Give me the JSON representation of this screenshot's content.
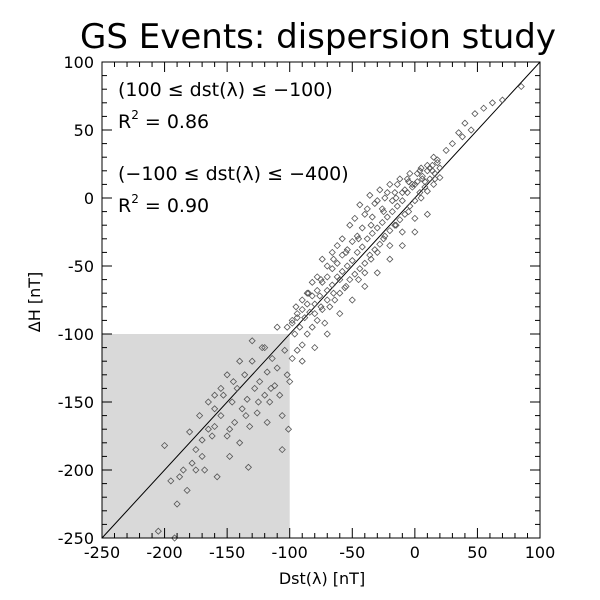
{
  "chart_data": {
    "type": "scatter",
    "title": "GS Events: dispersion study",
    "xlabel": "Dst(λ) [nT]",
    "ylabel": "ΔH [nT]",
    "xlim": [
      -250,
      100
    ],
    "ylim": [
      -250,
      100
    ],
    "xticks": [
      -250,
      -200,
      -150,
      -100,
      -50,
      0,
      50,
      100
    ],
    "yticks": [
      -250,
      -200,
      -150,
      -100,
      -50,
      0,
      50,
      100
    ],
    "grid": false,
    "marker": "diamond-open",
    "colors": {
      "points": "#555555",
      "shade": "#d9d9d9",
      "axis": "#000000"
    },
    "shaded_region": {
      "x": [
        -250,
        -100
      ],
      "y": [
        -250,
        -100
      ]
    },
    "reference_line": {
      "x": [
        -250,
        100
      ],
      "y": [
        -250,
        100
      ]
    },
    "annotations": [
      {
        "id": "range1",
        "text": "(100 ≤ dst(λ) ≤ −100)"
      },
      {
        "id": "r2a_prefix",
        "text": "R"
      },
      {
        "id": "r2a_sup",
        "text": "2"
      },
      {
        "id": "r2a_value",
        "text": " = 0.86"
      },
      {
        "id": "range2",
        "text": "(−100 ≤ dst(λ) ≤ −400)"
      },
      {
        "id": "r2b_prefix",
        "text": "R"
      },
      {
        "id": "r2b_sup",
        "text": "2"
      },
      {
        "id": "r2b_value",
        "text": " = 0.90"
      }
    ],
    "series": [
      {
        "points": [
          [
            -205,
            -245
          ],
          [
            -200,
            -182
          ],
          [
            -195,
            -208
          ],
          [
            -192,
            -250
          ],
          [
            -188,
            -205
          ],
          [
            -185,
            -200
          ],
          [
            -180,
            -172
          ],
          [
            -178,
            -195
          ],
          [
            -175,
            -185
          ],
          [
            -172,
            -160
          ],
          [
            -170,
            -178
          ],
          [
            -168,
            -200
          ],
          [
            -165,
            -150
          ],
          [
            -162,
            -175
          ],
          [
            -160,
            -168
          ],
          [
            -158,
            -205
          ],
          [
            -155,
            -160
          ],
          [
            -153,
            -145
          ],
          [
            -150,
            -175
          ],
          [
            -148,
            -190
          ],
          [
            -146,
            -150
          ],
          [
            -144,
            -165
          ],
          [
            -142,
            -140
          ],
          [
            -140,
            -180
          ],
          [
            -138,
            -155
          ],
          [
            -136,
            -130
          ],
          [
            -134,
            -148
          ],
          [
            -132,
            -168
          ],
          [
            -130,
            -120
          ],
          [
            -128,
            -140
          ],
          [
            -126,
            -158
          ],
          [
            -124,
            -135
          ],
          [
            -122,
            -110
          ],
          [
            -120,
            -145
          ],
          [
            -118,
            -128
          ],
          [
            -116,
            -150
          ],
          [
            -114,
            -118
          ],
          [
            -112,
            -138
          ],
          [
            -110,
            -125
          ],
          [
            -108,
            -145
          ],
          [
            -106,
            -160
          ],
          [
            -104,
            -112
          ],
          [
            -102,
            -130
          ],
          [
            -101,
            -170
          ],
          [
            -98,
            -118
          ],
          [
            -96,
            -100
          ],
          [
            -94,
            -112
          ],
          [
            -92,
            -95
          ],
          [
            -90,
            -108
          ],
          [
            -88,
            -88
          ],
          [
            -86,
            -100
          ],
          [
            -84,
            -84
          ],
          [
            -82,
            -95
          ],
          [
            -80,
            -78
          ],
          [
            -78,
            -90
          ],
          [
            -76,
            -72
          ],
          [
            -74,
            -82
          ],
          [
            -72,
            -92
          ],
          [
            -70,
            -68
          ],
          [
            -68,
            -80
          ],
          [
            -66,
            -64
          ],
          [
            -64,
            -75
          ],
          [
            -62,
            -58
          ],
          [
            -60,
            -70
          ],
          [
            -58,
            -54
          ],
          [
            -56,
            -66
          ],
          [
            -54,
            -50
          ],
          [
            -52,
            -60
          ],
          [
            -50,
            -46
          ],
          [
            -48,
            -56
          ],
          [
            -46,
            -40
          ],
          [
            -44,
            -52
          ],
          [
            -42,
            -36
          ],
          [
            -40,
            -48
          ],
          [
            -38,
            -30
          ],
          [
            -36,
            -42
          ],
          [
            -34,
            -26
          ],
          [
            -32,
            -38
          ],
          [
            -30,
            -22
          ],
          [
            -28,
            -34
          ],
          [
            -26,
            -18
          ],
          [
            -24,
            -28
          ],
          [
            -22,
            -14
          ],
          [
            -20,
            -24
          ],
          [
            -18,
            -10
          ],
          [
            -16,
            -20
          ],
          [
            -14,
            -6
          ],
          [
            -12,
            -16
          ],
          [
            -10,
            -2
          ],
          [
            -8,
            -12
          ],
          [
            -6,
            4
          ],
          [
            -4,
            -6
          ],
          [
            -2,
            8
          ],
          [
            0,
            -2
          ],
          [
            2,
            12
          ],
          [
            4,
            4
          ],
          [
            6,
            16
          ],
          [
            8,
            8
          ],
          [
            10,
            20
          ],
          [
            12,
            14
          ],
          [
            14,
            24
          ],
          [
            16,
            18
          ],
          [
            18,
            28
          ],
          [
            20,
            22
          ],
          [
            25,
            35
          ],
          [
            30,
            40
          ],
          [
            35,
            48
          ],
          [
            40,
            55
          ],
          [
            48,
            62
          ],
          [
            55,
            66
          ],
          [
            -60,
            -85
          ],
          [
            -55,
            -40
          ],
          [
            -50,
            -75
          ],
          [
            -45,
            -30
          ],
          [
            -40,
            -65
          ],
          [
            -35,
            -20
          ],
          [
            -30,
            -55
          ],
          [
            -25,
            -10
          ],
          [
            -20,
            -45
          ],
          [
            -15,
            0
          ],
          [
            -10,
            -35
          ],
          [
            -5,
            12
          ],
          [
            0,
            -25
          ],
          [
            5,
            22
          ],
          [
            10,
            -12
          ],
          [
            15,
            30
          ],
          [
            -70,
            -100
          ],
          [
            -65,
            -45
          ],
          [
            -75,
            -60
          ],
          [
            -80,
            -110
          ],
          [
            -85,
            -70
          ],
          [
            -90,
            -120
          ],
          [
            -95,
            -80
          ],
          [
            -100,
            -135
          ],
          [
            -110,
            -95
          ],
          [
            -115,
            -140
          ],
          [
            -120,
            -110
          ],
          [
            -125,
            -150
          ],
          [
            -130,
            -105
          ],
          [
            -135,
            -160
          ],
          [
            -52,
            -20
          ],
          [
            -48,
            -15
          ],
          [
            -44,
            -5
          ],
          [
            -40,
            -12
          ],
          [
            -36,
            2
          ],
          [
            -32,
            -4
          ],
          [
            -28,
            6
          ],
          [
            -24,
            0
          ],
          [
            -20,
            10
          ],
          [
            -16,
            4
          ],
          [
            -12,
            14
          ],
          [
            -8,
            6
          ],
          [
            -4,
            18
          ],
          [
            0,
            10
          ],
          [
            4,
            20
          ],
          [
            8,
            12
          ],
          [
            12,
            22
          ],
          [
            16,
            14
          ],
          [
            -58,
            -30
          ],
          [
            -62,
            -35
          ],
          [
            -66,
            -40
          ],
          [
            -70,
            -50
          ],
          [
            -74,
            -45
          ],
          [
            -78,
            -58
          ],
          [
            -82,
            -62
          ],
          [
            -86,
            -70
          ],
          [
            -90,
            -75
          ],
          [
            -94,
            -85
          ],
          [
            -98,
            -90
          ],
          [
            -102,
            -95
          ],
          [
            -140,
            -120
          ],
          [
            -145,
            -135
          ],
          [
            -150,
            -130
          ],
          [
            -155,
            -140
          ],
          [
            -160,
            -155
          ],
          [
            -165,
            -170
          ],
          [
            -170,
            -190
          ],
          [
            -175,
            -200
          ],
          [
            -182,
            -215
          ],
          [
            -190,
            -225
          ],
          [
            -45,
            -60
          ],
          [
            -40,
            -55
          ],
          [
            -35,
            -45
          ],
          [
            -30,
            -40
          ],
          [
            -25,
            -30
          ],
          [
            -20,
            -35
          ],
          [
            -15,
            -20
          ],
          [
            -10,
            -25
          ],
          [
            -5,
            -10
          ],
          [
            0,
            -15
          ],
          [
            5,
            0
          ],
          [
            10,
            5
          ],
          [
            15,
            10
          ],
          [
            20,
            15
          ],
          [
            -55,
            -65
          ],
          [
            -60,
            -60
          ],
          [
            -65,
            -70
          ],
          [
            -70,
            -75
          ],
          [
            -75,
            -80
          ],
          [
            -80,
            -85
          ],
          [
            -38,
            -8
          ],
          [
            -34,
            -14
          ],
          [
            -30,
            -2
          ],
          [
            -26,
            -8
          ],
          [
            -22,
            4
          ],
          [
            -18,
            -2
          ],
          [
            -14,
            10
          ],
          [
            -10,
            4
          ],
          [
            -6,
            14
          ],
          [
            -2,
            10
          ],
          [
            2,
            18
          ],
          [
            6,
            14
          ],
          [
            10,
            24
          ],
          [
            14,
            20
          ],
          [
            18,
            26
          ],
          [
            -42,
            -22
          ],
          [
            -46,
            -28
          ],
          [
            -50,
            -32
          ],
          [
            -54,
            -38
          ],
          [
            -58,
            -42
          ],
          [
            -62,
            -48
          ],
          [
            -66,
            -52
          ],
          [
            -70,
            -58
          ],
          [
            -74,
            -62
          ],
          [
            -78,
            -68
          ],
          [
            -82,
            -72
          ],
          [
            -86,
            -78
          ],
          [
            -90,
            -82
          ],
          [
            -94,
            -88
          ],
          [
            -98,
            -92
          ],
          [
            85,
            82
          ],
          [
            70,
            72
          ],
          [
            62,
            70
          ],
          [
            45,
            50
          ],
          [
            38,
            45
          ],
          [
            -160,
            -145
          ],
          [
            -148,
            -170
          ],
          [
            -118,
            -165
          ],
          [
            -106,
            -185
          ],
          [
            -133,
            -198
          ]
        ]
      }
    ]
  }
}
